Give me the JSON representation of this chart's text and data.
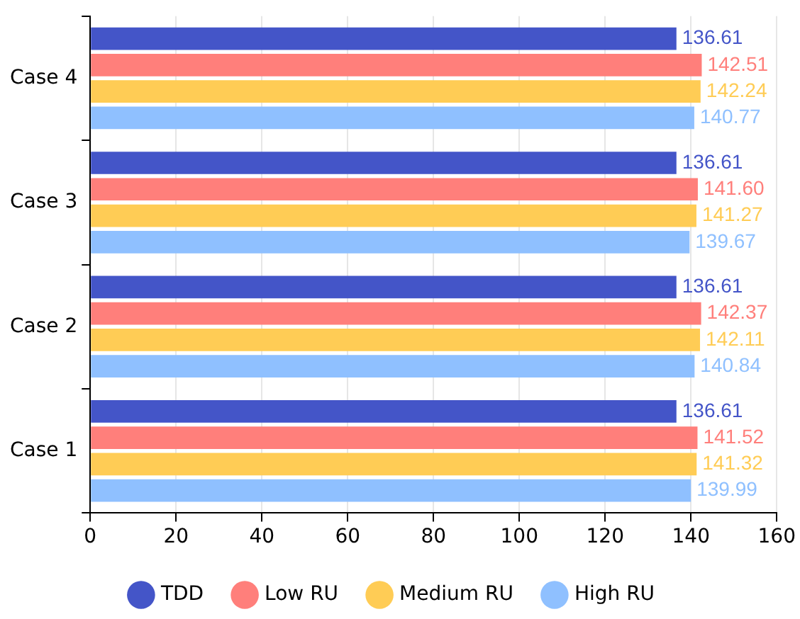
{
  "chart_data": {
    "type": "bar",
    "orientation": "horizontal",
    "categories": [
      "Case 4",
      "Case 3",
      "Case 2",
      "Case 1"
    ],
    "series": [
      {
        "name": "TDD",
        "color": "#4455c8",
        "values": [
          136.61,
          136.61,
          136.61,
          136.61
        ],
        "value_labels": [
          "136.61",
          "136.61",
          "136.61",
          "136.61"
        ]
      },
      {
        "name": "Low RU",
        "color": "#ff7f7b",
        "values": [
          142.51,
          141.6,
          142.37,
          141.52
        ],
        "value_labels": [
          "142.51",
          "141.60",
          "142.37",
          "141.52"
        ]
      },
      {
        "name": "Medium RU",
        "color": "#ffcc55",
        "values": [
          142.24,
          141.27,
          142.11,
          141.32
        ],
        "value_labels": [
          "142.24",
          "141.27",
          "142.11",
          "141.32"
        ]
      },
      {
        "name": "High RU",
        "color": "#8fc0ff",
        "values": [
          140.77,
          139.67,
          140.84,
          139.99
        ],
        "value_labels": [
          "140.77",
          "139.67",
          "140.84",
          "139.99"
        ]
      }
    ],
    "xlim": [
      0,
      160
    ],
    "xticks": [
      0,
      20,
      40,
      60,
      80,
      100,
      120,
      140,
      160
    ],
    "grid": "x",
    "legend": "bottom"
  }
}
